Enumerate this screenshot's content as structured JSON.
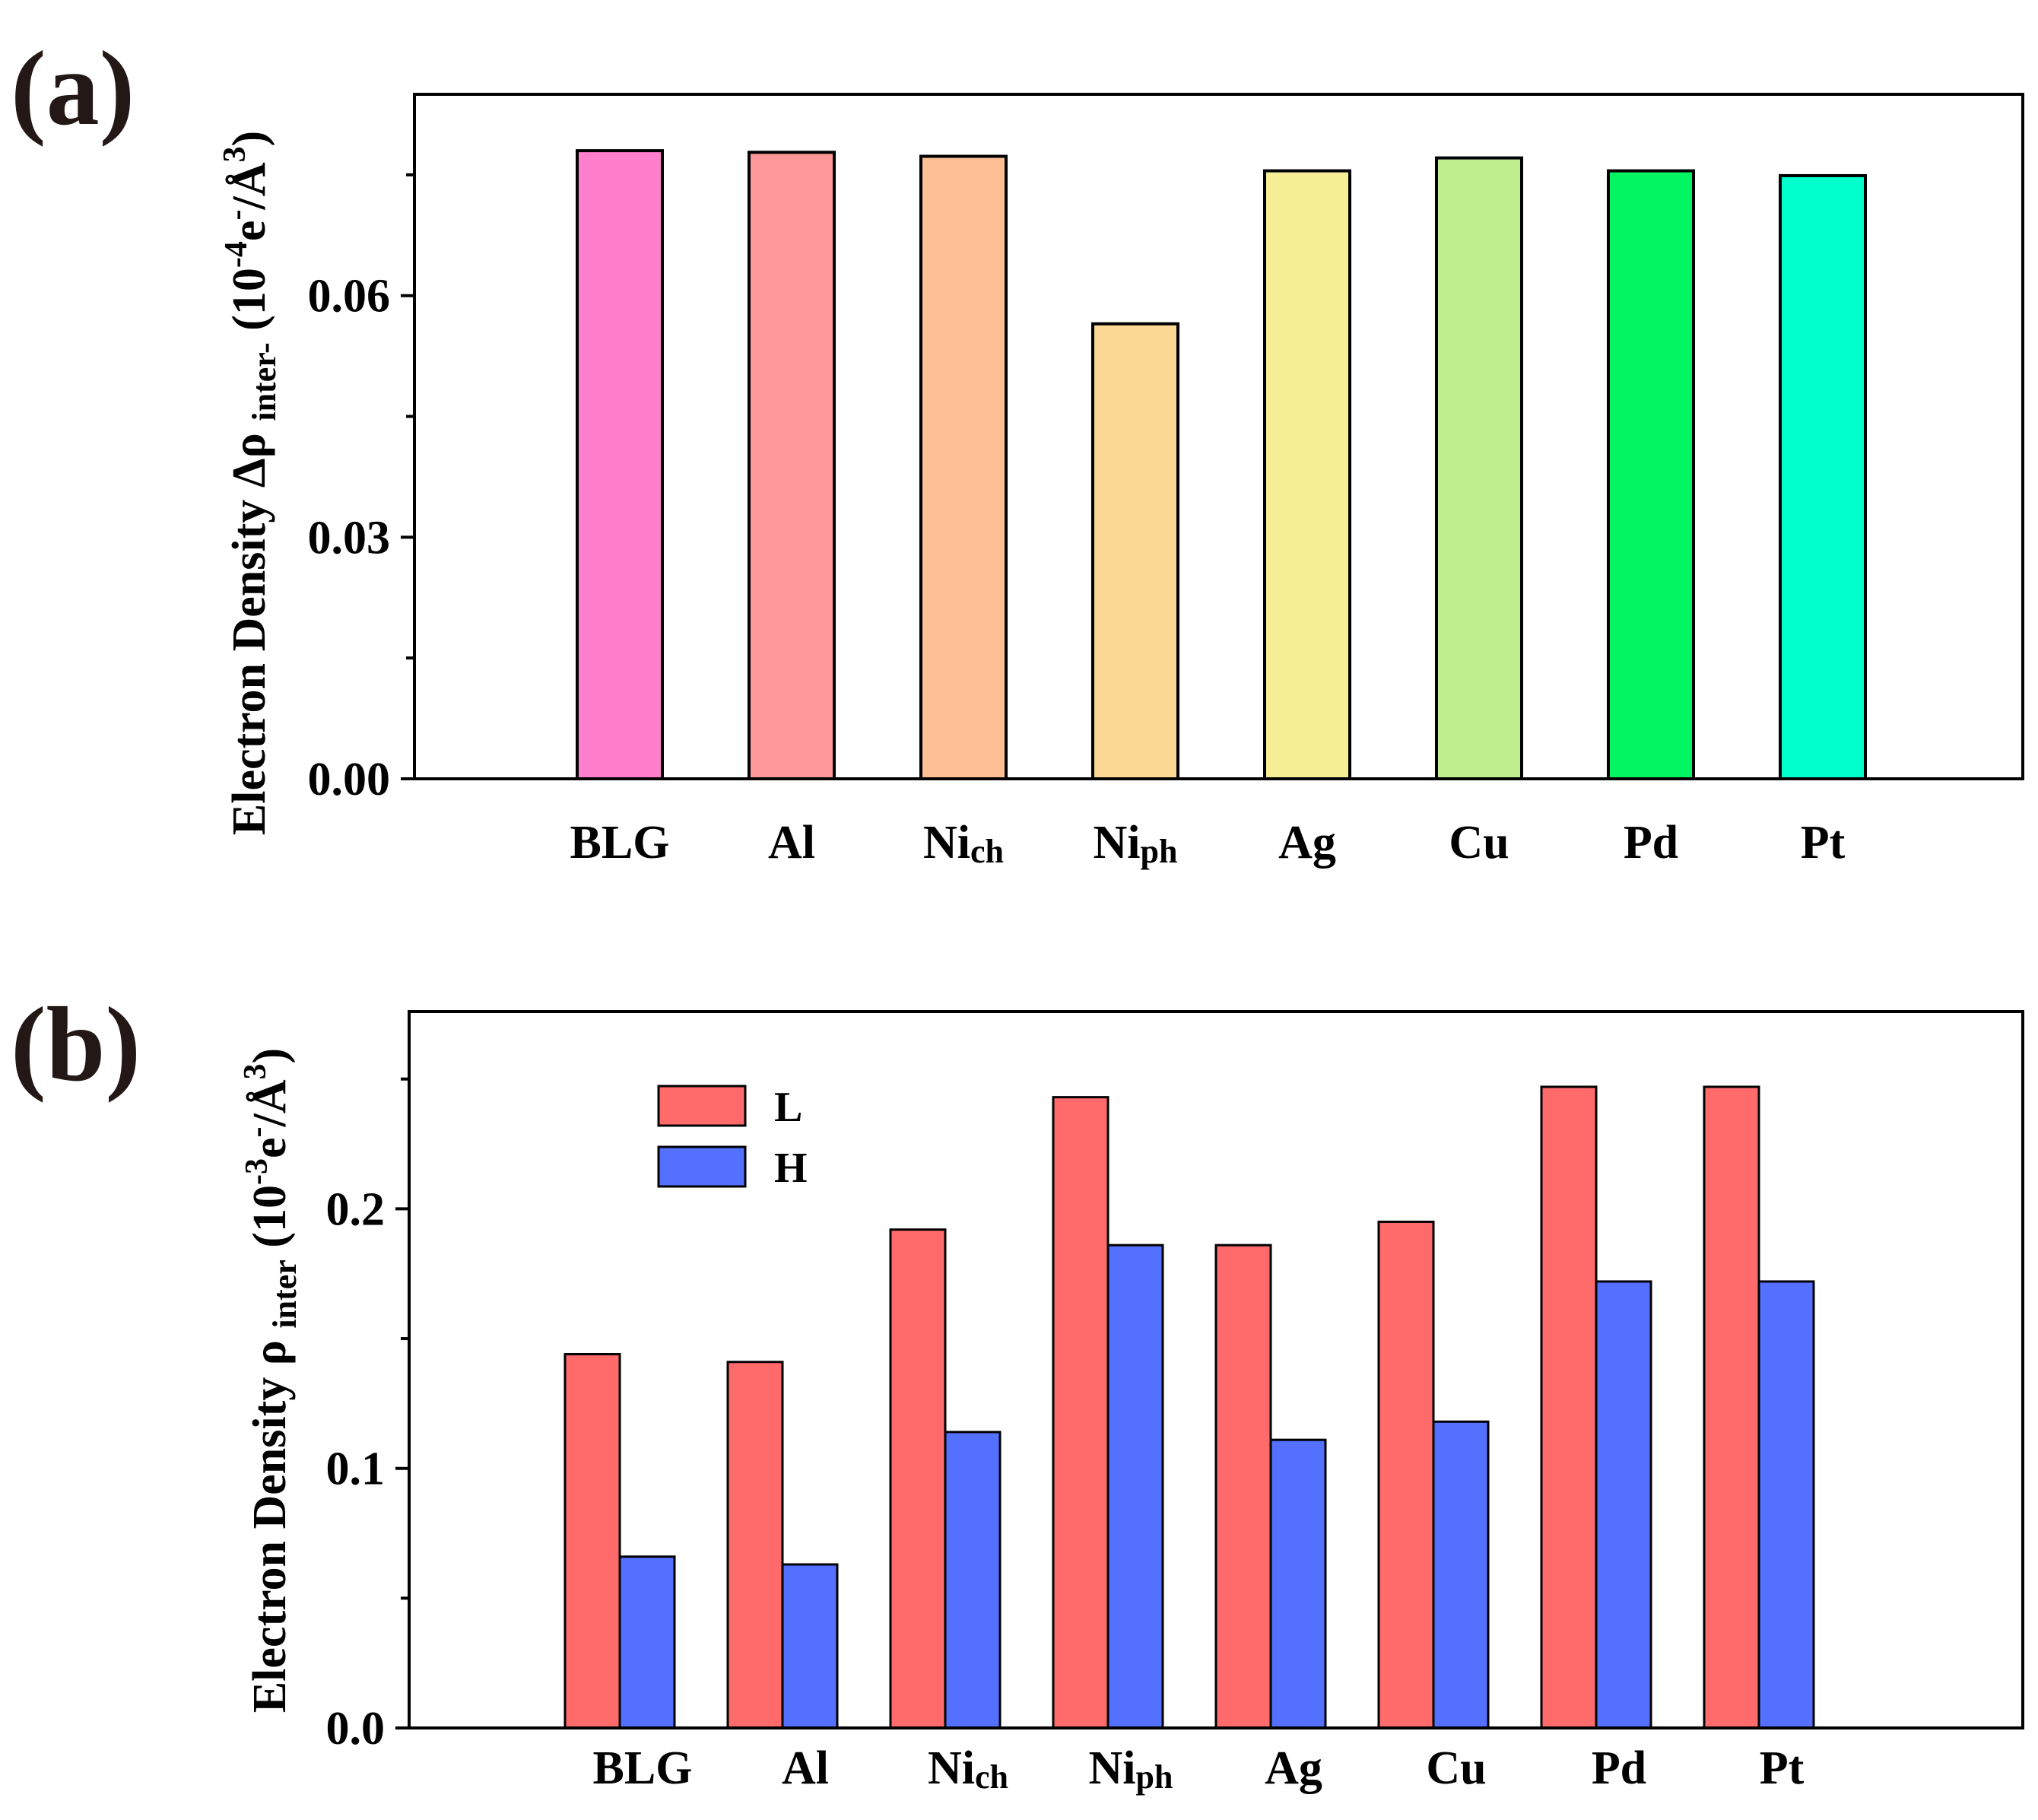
{
  "chart_data": [
    {
      "panel": "(a)",
      "type": "bar",
      "categories": [
        "BLG",
        "Al",
        "Ni_ch",
        "Ni_ph",
        "Ag",
        "Cu",
        "Pd",
        "Pt"
      ],
      "category_labels": [
        {
          "main": "BLG",
          "sub": ""
        },
        {
          "main": "Al",
          "sub": ""
        },
        {
          "main": "Ni",
          "sub": "ch"
        },
        {
          "main": "Ni",
          "sub": "ph"
        },
        {
          "main": "Ag",
          "sub": ""
        },
        {
          "main": "Cu",
          "sub": ""
        },
        {
          "main": "Pd",
          "sub": ""
        },
        {
          "main": "Pt",
          "sub": ""
        }
      ],
      "values": [
        0.078,
        0.0778,
        0.0773,
        0.0565,
        0.0755,
        0.0771,
        0.0755,
        0.0749
      ],
      "colors": [
        "#FF7FCC",
        "#FF9999",
        "#FFBF94",
        "#FCD895",
        "#F5EE95",
        "#BFEF8F",
        "#00F560",
        "#00FFCC"
      ],
      "ylim": [
        0,
        0.085
      ],
      "yticks": [
        "0.00",
        "0.03",
        "0.06"
      ],
      "ytick_values": [
        0,
        0.03,
        0.06
      ],
      "ylabel": {
        "prefix": "Electron Density Δρ ",
        "sub": "inter-",
        "unit_open": " (10",
        "exp": "-4",
        "unit_mid": "e",
        "exp2": "-",
        "unit_close": "/Å",
        "exp3": "3",
        "end": ")"
      },
      "xlabel": ""
    },
    {
      "panel": "(b)",
      "type": "bar",
      "categories": [
        "BLG",
        "Al",
        "Ni_ch",
        "Ni_ph",
        "Ag",
        "Cu",
        "Pd",
        "Pt"
      ],
      "category_labels": [
        {
          "main": "BLG",
          "sub": ""
        },
        {
          "main": "Al",
          "sub": ""
        },
        {
          "main": "Ni",
          "sub": "ch"
        },
        {
          "main": "Ni",
          "sub": "ph"
        },
        {
          "main": "Ag",
          "sub": ""
        },
        {
          "main": "Cu",
          "sub": ""
        },
        {
          "main": "Pd",
          "sub": ""
        },
        {
          "main": "Pt",
          "sub": ""
        }
      ],
      "series": [
        {
          "name": "L",
          "color": "#FF6B6B",
          "values": [
            0.144,
            0.141,
            0.192,
            0.243,
            0.186,
            0.195,
            0.247,
            0.247
          ]
        },
        {
          "name": "H",
          "color": "#5470FF",
          "values": [
            0.066,
            0.063,
            0.114,
            0.186,
            0.111,
            0.118,
            0.172,
            0.172
          ]
        }
      ],
      "ylim": [
        0,
        0.276
      ],
      "yticks": [
        "0.0",
        "0.1",
        "0.2"
      ],
      "ytick_values": [
        0,
        0.1,
        0.2
      ],
      "ylabel": {
        "prefix": "Electron Density ρ ",
        "sub": "inter",
        "unit_open": " (10",
        "exp": "-3",
        "unit_mid": "e",
        "exp2": "-",
        "unit_close": "/Å",
        "exp3": "3",
        "end": ")"
      },
      "legend_position": "top-left",
      "xlabel": ""
    }
  ]
}
